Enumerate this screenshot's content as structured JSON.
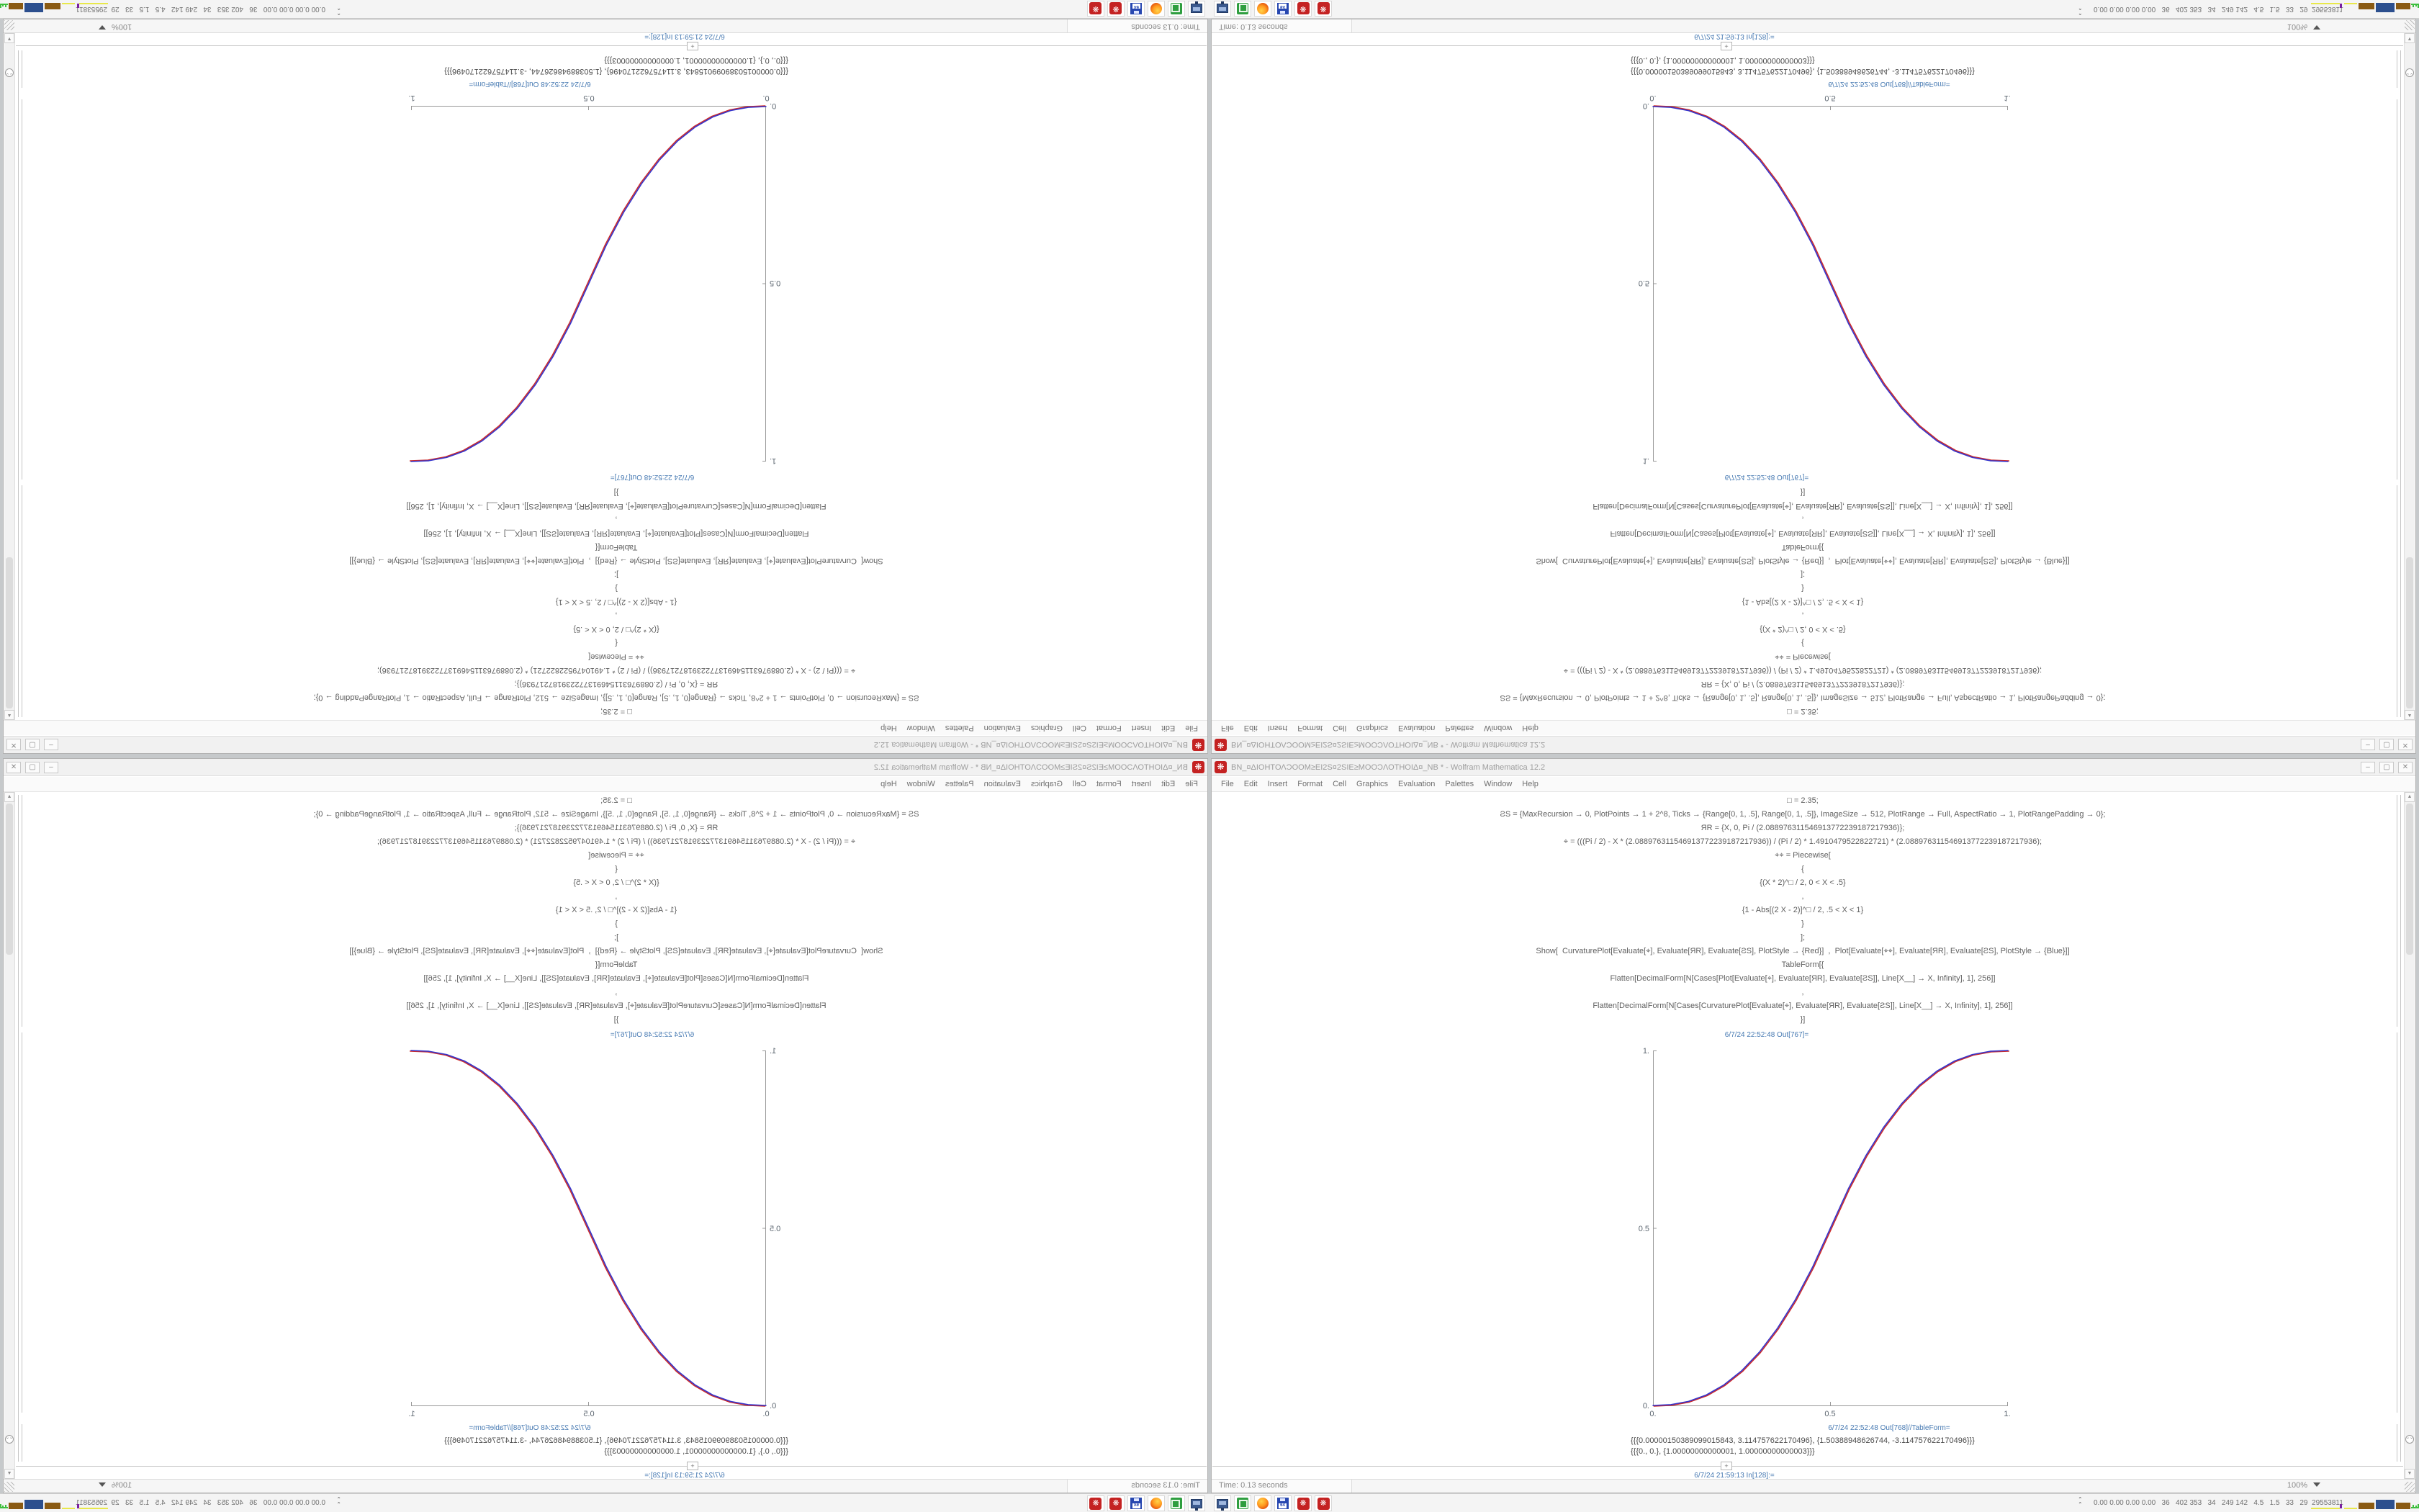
{
  "window": {
    "title": "ΒΝ_¤ΔΙΟΗΤΟΛϽΟΟΜ≥ΕΙ2S¤2SΙΕ≥ΜΟΟϽΛΟΤΗΟΙΔ¤_ΝΒ * - Wolfram Mathematica 12.2",
    "app_icon_glyph": "❋",
    "buttons": {
      "minimize": "–",
      "maximize": "▢",
      "close": "✕"
    },
    "menu": [
      "File",
      "Edit",
      "Insert",
      "Format",
      "Cell",
      "Graphics",
      "Evaluation",
      "Palettes",
      "Window",
      "Help"
    ],
    "status": {
      "time": "Time: 0.13 seconds",
      "zoom": "100%"
    }
  },
  "notebook": {
    "code_lines": [
      "□ = 2.35;",
      "ƧS = {MaxRecursion → 0, PlotPoints → 1 + 2^8, Ticks → {Range[0, 1, .5], Range[0, 1, .5]}, ImageSize → 512, PlotRange → Full, AspectRatio → 1, PlotRangePadding → 0};",
      "ЯR = {X, 0, Pi / (2.088976311546913772239187217936)};",
      "⌖ = (((Pi / 2) - X * (2.088976311546913772239187217936)) / (Pi / 2) * 1.4910479522822721) * (2.088976311546913772239187217936);",
      "⌖⌖ = Piecewise[",
      "{",
      "{(X * 2)^□ / 2, 0 < X < .5}",
      ",",
      "{1 - Abs[(2 X - 2)]^□ / 2, .5 < X < 1}",
      "}",
      "];",
      "Show[  CurvaturePlot[Evaluate[⌖], Evaluate[ЯR], Evaluate[ƧS], PlotStyle → {Red}]  ,  Plot[Evaluate[⌖⌖], Evaluate[ЯR], Evaluate[ƧS], PlotStyle → {Blue}]]",
      "TableForm[{",
      "Flatten[DecimalForm[N[Cases[Plot[Evaluate[⌖], Evaluate[ЯR], Evaluate[ƧS]], Line[X__] → X, Infinity], 1], 256]]",
      ",",
      "Flatten[DecimalForm[N[Cases[CurvaturePlot[Evaluate[⌖], Evaluate[ЯR], Evaluate[ƧS]], Line[X__] → X, Infinity], 1], 256]]",
      "}]"
    ],
    "out1_label": "6/7/24 22:52:48 Out[767]=",
    "out2_label": "6/7/24 22:52:48 Out[768]//TableForm=",
    "in_label": "6/7/24 21:59:13 In[128]:=",
    "insert_plus": "+",
    "table_rows": [
      "{{{0.00000150389099015843, 3.114757622170496}, {1.50388948626744, -3.114757622170496}}}",
      "{{{0., 0.}, {1.00000000000001, 1.00000000000003}}}"
    ]
  },
  "chart_data": {
    "type": "line",
    "title": "",
    "xlabel": "",
    "ylabel": "",
    "xlim": [
      0,
      1
    ],
    "ylim": [
      0,
      1
    ],
    "x_ticks": [
      0,
      0.5,
      1
    ],
    "y_ticks": [
      0,
      0.5,
      1
    ],
    "x_tick_labels": [
      "0.",
      "0.5",
      "1."
    ],
    "y_tick_labels": [
      "0.",
      "0.5",
      "1."
    ],
    "grid": false,
    "legend": "none",
    "axes_style": "left-bottom, gray, ticks inward",
    "piecewise_exponent": 2.35,
    "x": [
      0,
      0.05,
      0.1,
      0.15,
      0.2,
      0.25,
      0.3,
      0.35,
      0.4,
      0.45,
      0.5,
      0.55,
      0.6,
      0.65,
      0.7,
      0.75,
      0.8,
      0.85,
      0.9,
      0.95,
      1
    ],
    "series": [
      {
        "name": "CurvaturePlot (Red)",
        "color": "#cc2a2a",
        "values": [
          0,
          0.0022,
          0.0114,
          0.0295,
          0.0581,
          0.098,
          0.1505,
          0.2163,
          0.2959,
          0.3903,
          0.5,
          0.6097,
          0.7041,
          0.7837,
          0.8495,
          0.902,
          0.9419,
          0.9705,
          0.9886,
          0.9978,
          1
        ]
      },
      {
        "name": "Plot (Blue)",
        "color": "#3535cc",
        "values": [
          0,
          0.0022,
          0.0114,
          0.0295,
          0.0581,
          0.098,
          0.1505,
          0.2163,
          0.2959,
          0.3903,
          0.5,
          0.6097,
          0.7041,
          0.7837,
          0.8495,
          0.902,
          0.9419,
          0.9705,
          0.9886,
          0.9978,
          1
        ]
      }
    ]
  },
  "taskbar": {
    "icon_names": [
      "display-icon",
      "virtualbox-icon",
      "firefox-icon",
      "floppy-64-icon",
      "mathematica-icon",
      "mathematica-icon"
    ],
    "floppy_label": "64",
    "gear_glyph": "❋",
    "chevrons": "⌃\n⌃",
    "monitor_numbers": "0.00 0.00 0.00 0.00   36   402 353   34   249 142   4.5   1.5   33   29  29553811"
  },
  "scrollbar": {
    "up": "▲",
    "down": "▼",
    "jump": "⌄⌄"
  },
  "colors": {
    "desktop": "#c6c9cb",
    "cell_label_blue": "#4679b2",
    "code_text": "#5f5f5f",
    "curve_red": "#cc2a2a",
    "curve_blue": "#3535cc",
    "axis_gray": "#999999",
    "app_red": "#c42222"
  },
  "layout_note": "Single 1680x1050 desktop tile shown 4 times: bottom-right original, bottom-left mirrored horizontally, top-right mirrored vertically, top-left rotated 180°."
}
